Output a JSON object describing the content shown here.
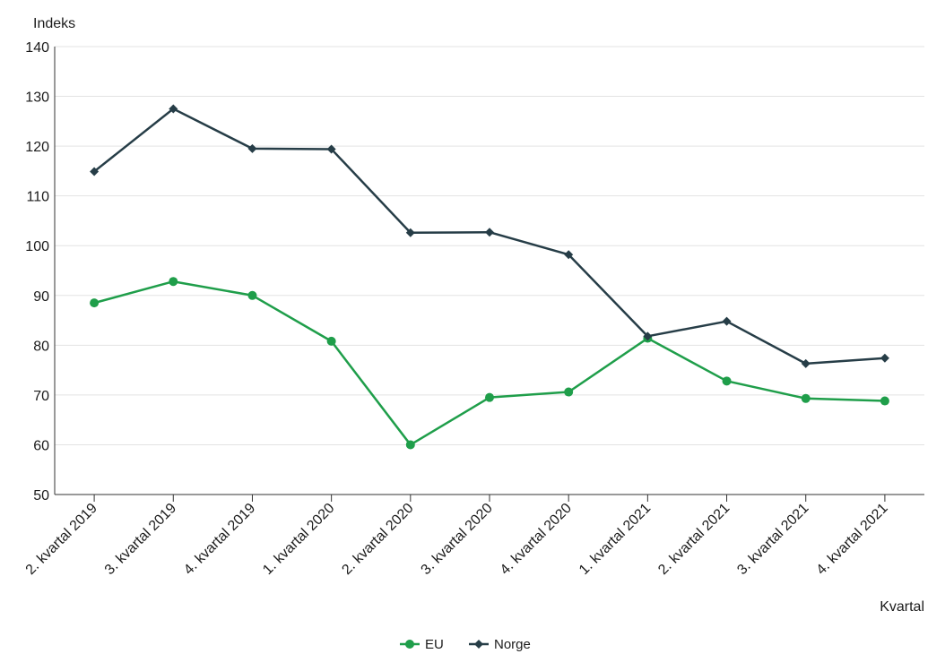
{
  "chart_data": {
    "type": "line",
    "ylabel": "Indeks",
    "xlabel": "Kvartal",
    "ylim": [
      50,
      140
    ],
    "yticks": [
      50,
      60,
      70,
      80,
      90,
      100,
      110,
      120,
      130,
      140
    ],
    "grid": true,
    "legend_position": "bottom",
    "categories": [
      "2. kvartal 2019",
      "3. kvartal 2019",
      "4. kvartal 2019",
      "1. kvartal 2020",
      "2. kvartal 2020",
      "3. kvartal 2020",
      "4. kvartal 2020",
      "1. kvartal 2021",
      "2. kvartal 2021",
      "3. kvartal 2021",
      "4. kvartal 2021"
    ],
    "series": [
      {
        "name": "EU",
        "color": "#1f9e4a",
        "marker": "circle",
        "values": [
          88.5,
          92.8,
          90.0,
          80.8,
          60.0,
          69.5,
          70.6,
          81.4,
          72.8,
          69.3,
          68.8
        ]
      },
      {
        "name": "Norge",
        "color": "#263d47",
        "marker": "diamond",
        "values": [
          114.9,
          127.5,
          119.5,
          119.4,
          102.6,
          102.7,
          98.2,
          81.8,
          84.8,
          76.3,
          77.4
        ]
      }
    ]
  }
}
